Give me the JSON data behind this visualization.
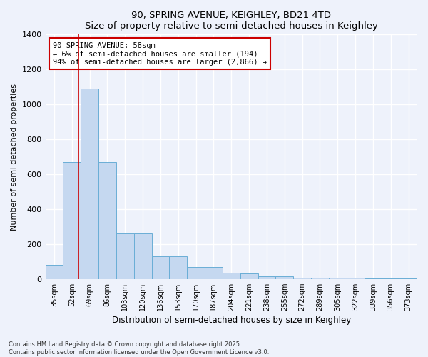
{
  "title1": "90, SPRING AVENUE, KEIGHLEY, BD21 4TD",
  "title2": "Size of property relative to semi-detached houses in Keighley",
  "xlabel": "Distribution of semi-detached houses by size in Keighley",
  "ylabel": "Number of semi-detached properties",
  "categories": [
    "35sqm",
    "52sqm",
    "69sqm",
    "86sqm",
    "103sqm",
    "120sqm",
    "136sqm",
    "153sqm",
    "170sqm",
    "187sqm",
    "204sqm",
    "221sqm",
    "238sqm",
    "255sqm",
    "272sqm",
    "289sqm",
    "305sqm",
    "322sqm",
    "339sqm",
    "356sqm",
    "373sqm"
  ],
  "values": [
    80,
    670,
    1090,
    670,
    260,
    260,
    130,
    130,
    70,
    70,
    35,
    30,
    15,
    15,
    8,
    5,
    8,
    5,
    3,
    3,
    2
  ],
  "bar_color": "#c5d8f0",
  "bar_edge_color": "#6aaed6",
  "vline_x": 1.38,
  "annotation_title": "90 SPRING AVENUE: 58sqm",
  "annotation_line1": "← 6% of semi-detached houses are smaller (194)",
  "annotation_line2": "94% of semi-detached houses are larger (2,866) →",
  "vline_color": "#cc0000",
  "annotation_box_color": "#ffffff",
  "annotation_box_edge": "#cc0000",
  "ylim": [
    0,
    1400
  ],
  "yticks": [
    0,
    200,
    400,
    600,
    800,
    1000,
    1200,
    1400
  ],
  "footer1": "Contains HM Land Registry data © Crown copyright and database right 2025.",
  "footer2": "Contains public sector information licensed under the Open Government Licence v3.0.",
  "bg_color": "#eef2fb",
  "plot_bg_color": "#eef2fb",
  "grid_color": "#ffffff"
}
